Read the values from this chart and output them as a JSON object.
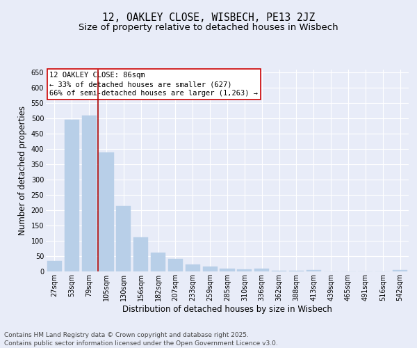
{
  "title": "12, OAKLEY CLOSE, WISBECH, PE13 2JZ",
  "subtitle": "Size of property relative to detached houses in Wisbech",
  "xlabel": "Distribution of detached houses by size in Wisbech",
  "ylabel": "Number of detached properties",
  "categories": [
    "27sqm",
    "53sqm",
    "79sqm",
    "105sqm",
    "130sqm",
    "156sqm",
    "182sqm",
    "207sqm",
    "233sqm",
    "259sqm",
    "285sqm",
    "310sqm",
    "336sqm",
    "362sqm",
    "388sqm",
    "413sqm",
    "439sqm",
    "465sqm",
    "491sqm",
    "516sqm",
    "542sqm"
  ],
  "values": [
    35,
    497,
    510,
    390,
    215,
    112,
    62,
    40,
    22,
    15,
    10,
    6,
    9,
    3,
    2,
    4,
    1,
    1,
    0,
    1,
    5
  ],
  "bar_color": "#b8cfe8",
  "bar_edgecolor": "#b8cfe8",
  "vline_x": 2.5,
  "vline_color": "#aa0000",
  "ylim": [
    0,
    660
  ],
  "yticks": [
    0,
    50,
    100,
    150,
    200,
    250,
    300,
    350,
    400,
    450,
    500,
    550,
    600,
    650
  ],
  "annotation_title": "12 OAKLEY CLOSE: 86sqm",
  "annotation_line1": "← 33% of detached houses are smaller (627)",
  "annotation_line2": "66% of semi-detached houses are larger (1,263) →",
  "annotation_box_color": "#cc0000",
  "footer_line1": "Contains HM Land Registry data © Crown copyright and database right 2025.",
  "footer_line2": "Contains public sector information licensed under the Open Government Licence v3.0.",
  "bg_color": "#e8ecf8",
  "plot_bg_color": "#e8ecf8",
  "grid_color": "#ffffff",
  "title_fontsize": 10.5,
  "subtitle_fontsize": 9.5,
  "axis_label_fontsize": 8.5,
  "tick_fontsize": 7,
  "footer_fontsize": 6.5,
  "annotation_fontsize": 7.5
}
